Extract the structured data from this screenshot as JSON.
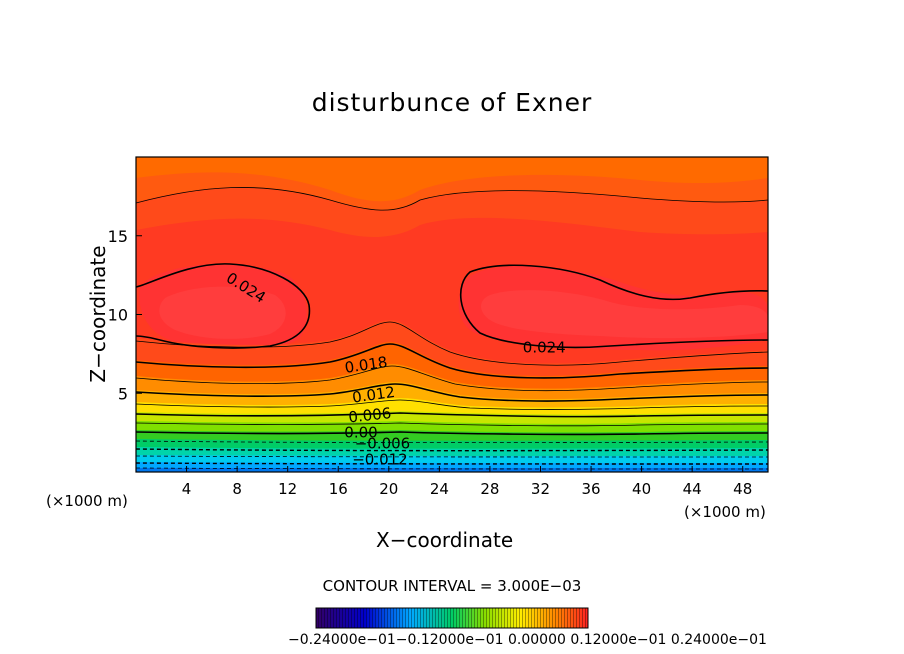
{
  "chart_data": {
    "type": "heatmap",
    "subtype": "filled-contour",
    "title": "disturbunce of Exner",
    "xlabel": "X−coordinate",
    "ylabel": "Z−coordinate",
    "x_unit_left": "(×1000 m)",
    "x_unit_right": "(×1000 m)",
    "xlim": [
      0,
      50
    ],
    "ylim": [
      0,
      20
    ],
    "x_ticks": [
      4,
      8,
      12,
      16,
      20,
      24,
      28,
      32,
      36,
      40,
      44,
      48
    ],
    "y_ticks": [
      5,
      10,
      15
    ],
    "contour_interval_text": "CONTOUR INTERVAL = 3.000E−03",
    "contour_interval": 0.003,
    "contour_labels": [
      {
        "text": "0.024",
        "x": 8.7,
        "z": 11.7
      },
      {
        "text": "0.024",
        "x": 32.3,
        "z": 7.9
      },
      {
        "text": "0.018",
        "x": 18.2,
        "z": 6.8
      },
      {
        "text": "0.012",
        "x": 18.8,
        "z": 4.9
      },
      {
        "text": "0.006",
        "x": 18.5,
        "z": 3.6
      },
      {
        "text": "0.00",
        "x": 17.8,
        "z": 2.5
      },
      {
        "text": "−0.006",
        "x": 19.5,
        "z": 1.8
      },
      {
        "text": "−0.012",
        "x": 19.3,
        "z": 0.8
      }
    ],
    "colorbar": {
      "labels_text": "−0.24000e−01−0.12000e−01 0.00000 0.12000e−01 0.24000e−01",
      "range": [
        -0.024,
        0.024
      ]
    },
    "colors": {
      "max": "#ff3333",
      "high": "#ff4d1a",
      "mid_high": "#ff7a00",
      "mid": "#ffcc00",
      "low_mid": "#33cc33",
      "low": "#00ccff",
      "min": "#0033cc"
    },
    "grid": false
  }
}
